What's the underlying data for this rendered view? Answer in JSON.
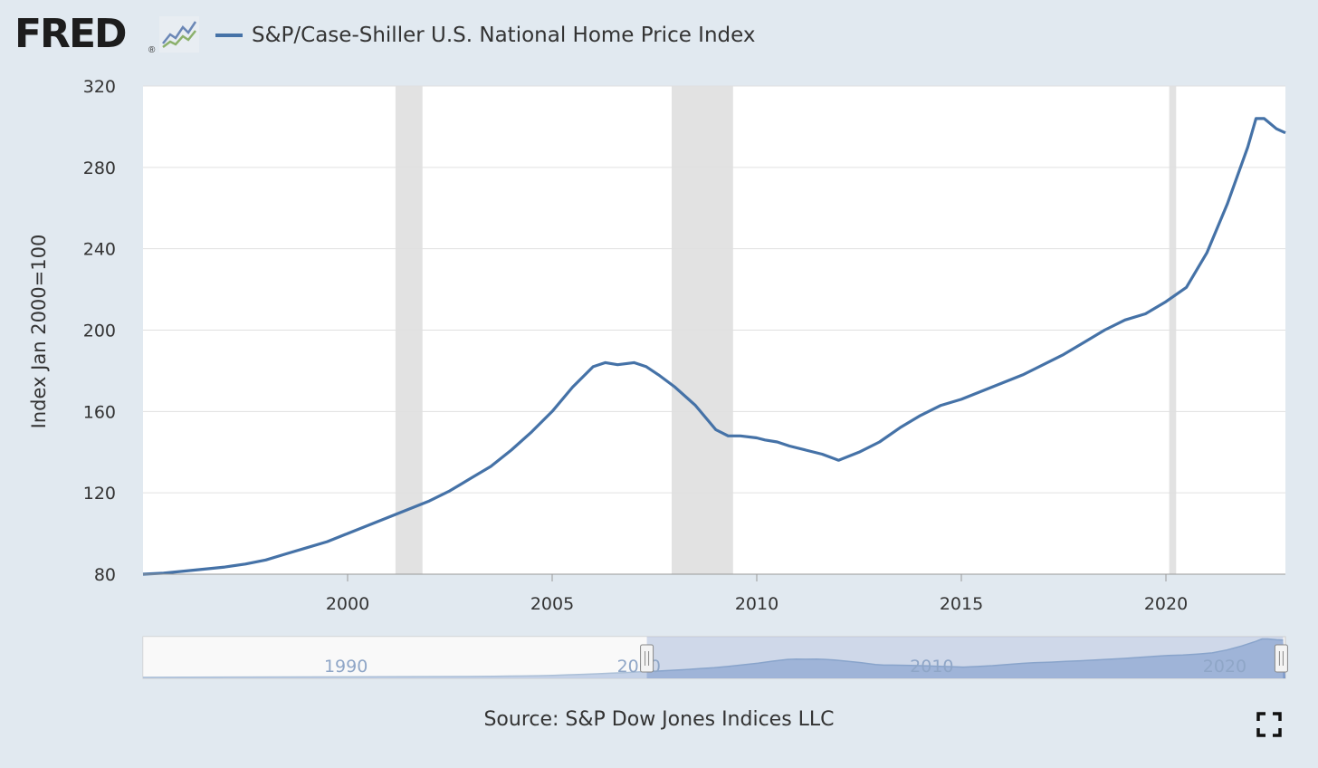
{
  "header": {
    "logo_text": "FRED",
    "logo_reg": "®",
    "series_title": "S&P/Case-Shiller U.S. National Home Price Index"
  },
  "source_text": "Source: S&P Dow Jones Indices LLC",
  "colors": {
    "line": "#4572a7",
    "recession": "#e2e2e2",
    "background": "#e1e9f0",
    "plot_bg": "#ffffff",
    "navigator_fill": "#6f8fc4",
    "navigator_mask": "#b7c7e3"
  },
  "icons": {
    "logo_graph": "line-graph-icon",
    "fullscreen": "fullscreen-icon"
  },
  "chart_data": {
    "type": "line",
    "ylabel": "Index Jan 2000=100",
    "ylim": [
      80,
      320
    ],
    "y_ticks": [
      80,
      120,
      160,
      200,
      240,
      280,
      320
    ],
    "x_ticks": [
      2000,
      2005,
      2010,
      2015,
      2020
    ],
    "xlim": [
      1995,
      2022.92
    ],
    "grid": true,
    "recessions": [
      [
        2001.17,
        2001.83
      ],
      [
        2007.92,
        2009.42
      ],
      [
        2020.08,
        2020.25
      ]
    ],
    "series": [
      {
        "name": "S&P/Case-Shiller U.S. National Home Price Index",
        "x": [
          1995,
          1995.5,
          1996,
          1996.5,
          1997,
          1997.5,
          1998,
          1998.5,
          1999,
          1999.5,
          2000,
          2000.5,
          2001,
          2001.5,
          2002,
          2002.5,
          2003,
          2003.5,
          2004,
          2004.5,
          2005,
          2005.5,
          2006,
          2006.3,
          2006.6,
          2007,
          2007.3,
          2007.6,
          2008,
          2008.5,
          2009,
          2009.3,
          2009.6,
          2010,
          2010.2,
          2010.5,
          2010.8,
          2011.2,
          2011.6,
          2012,
          2012.5,
          2013,
          2013.5,
          2014,
          2014.5,
          2015,
          2015.5,
          2016,
          2016.5,
          2017,
          2017.5,
          2018,
          2018.5,
          2019,
          2019.5,
          2020,
          2020.5,
          2021,
          2021.5,
          2022,
          2022.2,
          2022.4,
          2022.7,
          2022.92
        ],
        "values": [
          80,
          80.5,
          81.5,
          82.5,
          83.5,
          85,
          87,
          90,
          93,
          96,
          100,
          104,
          108,
          112,
          116,
          121,
          127,
          133,
          141,
          150,
          160,
          172,
          182,
          184,
          183,
          184,
          182,
          178,
          172,
          163,
          151,
          148,
          148,
          147,
          146,
          145,
          143,
          141,
          139,
          136,
          140,
          145,
          152,
          158,
          163,
          166,
          170,
          174,
          178,
          183,
          188,
          194,
          200,
          205,
          208,
          214,
          221,
          238,
          262,
          290,
          304,
          304,
          299,
          297
        ]
      }
    ],
    "navigator": {
      "x_ticks": [
        1990,
        2000,
        2010,
        2020
      ],
      "xlim": [
        1984,
        2023
      ],
      "window": [
        2001.2,
        2022.92
      ]
    }
  }
}
